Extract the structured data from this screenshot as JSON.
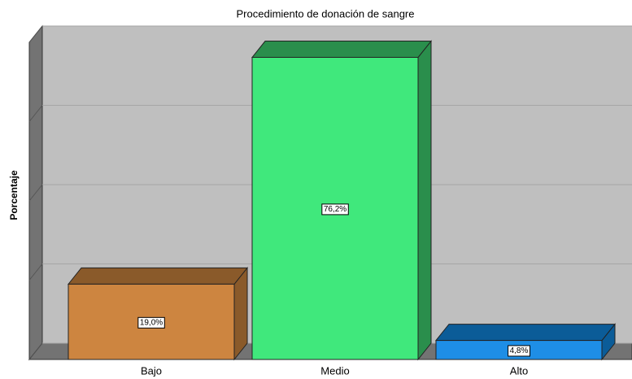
{
  "chart_data": {
    "type": "bar3d",
    "title": "Procedimiento de donación de sangre",
    "y_label": "Porcentaje",
    "categories": [
      "Bajo",
      "Medio",
      "Alto"
    ],
    "values": [
      19.0,
      76.2,
      4.8
    ],
    "value_labels": [
      "19,0%",
      "76,2%",
      "4,8%"
    ],
    "colors": [
      "#cd8540",
      "#40e87c",
      "#1e8ee6"
    ],
    "side_colors": [
      "#8a5a2a",
      "#2a8e4c",
      "#0b5c98"
    ],
    "ylim": [
      0,
      80
    ],
    "yticks": [
      0,
      20,
      40,
      60,
      80
    ],
    "grid": true
  }
}
